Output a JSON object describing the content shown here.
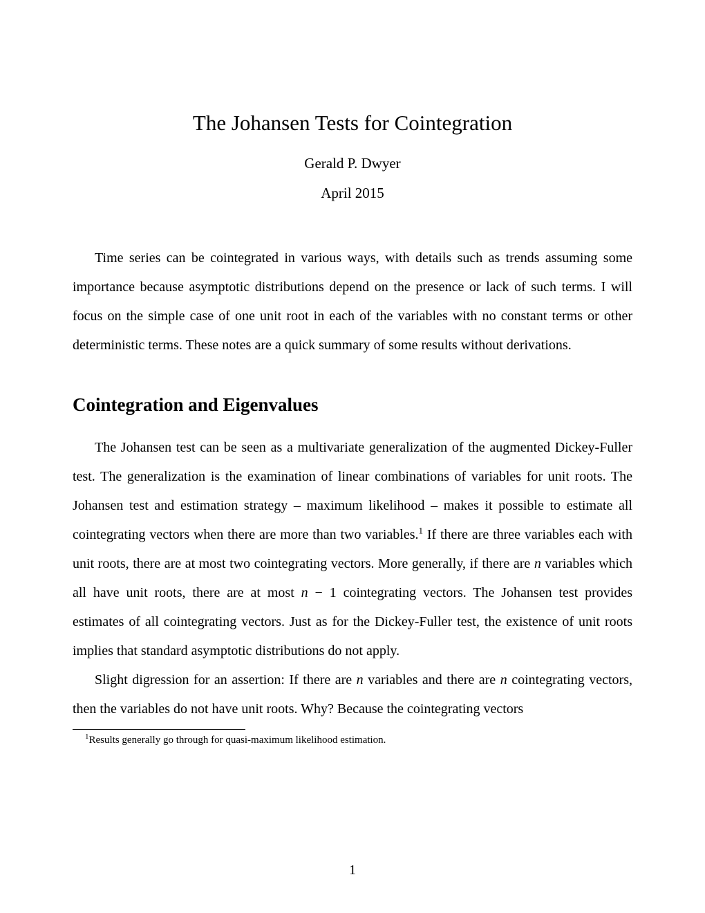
{
  "header": {
    "title": "The Johansen Tests for Cointegration",
    "author": "Gerald P. Dwyer",
    "date": "April 2015"
  },
  "intro": {
    "paragraph1": "Time series can be cointegrated in various ways, with details such as trends assuming some importance because asymptotic distributions depend on the presence or lack of such terms. I will focus on the simple case of one unit root in each of the variables with no constant terms or other deterministic terms. These notes are a quick summary of some results without derivations."
  },
  "section1": {
    "heading": "Cointegration and Eigenvalues",
    "p1_a": "The Johansen test can be seen as a multivariate generalization of the augmented Dickey-Fuller test. The generalization is the examination of linear combinations of variables for unit roots. The Johansen test and estimation strategy – maximum likelihood – makes it possible to estimate all cointegrating vectors when there are more than two variables.",
    "p1_sup": "1",
    "p1_b": " If there are three variables each with unit roots, there are at most two cointegrating vectors. More generally, if there are ",
    "p1_n1": "n",
    "p1_c": " variables which all have unit roots, there are at most ",
    "p1_n2": "n",
    "p1_minus": " − 1",
    "p1_d": " cointegrating vectors. The Johansen test provides estimates of all cointegrating vectors. Just as for the Dickey-Fuller test, the existence of unit roots implies that standard asymptotic distributions do not apply.",
    "p2_a": "Slight digression for an assertion: If there are ",
    "p2_n1": "n",
    "p2_b": " variables and there are ",
    "p2_n2": "n",
    "p2_c": " cointegrating vectors, then the variables do not have unit roots. Why? Because the cointegrating vectors"
  },
  "footnote": {
    "marker": "1",
    "text": "Results generally go through for quasi-maximum likelihood estimation."
  },
  "pagenum": "1"
}
